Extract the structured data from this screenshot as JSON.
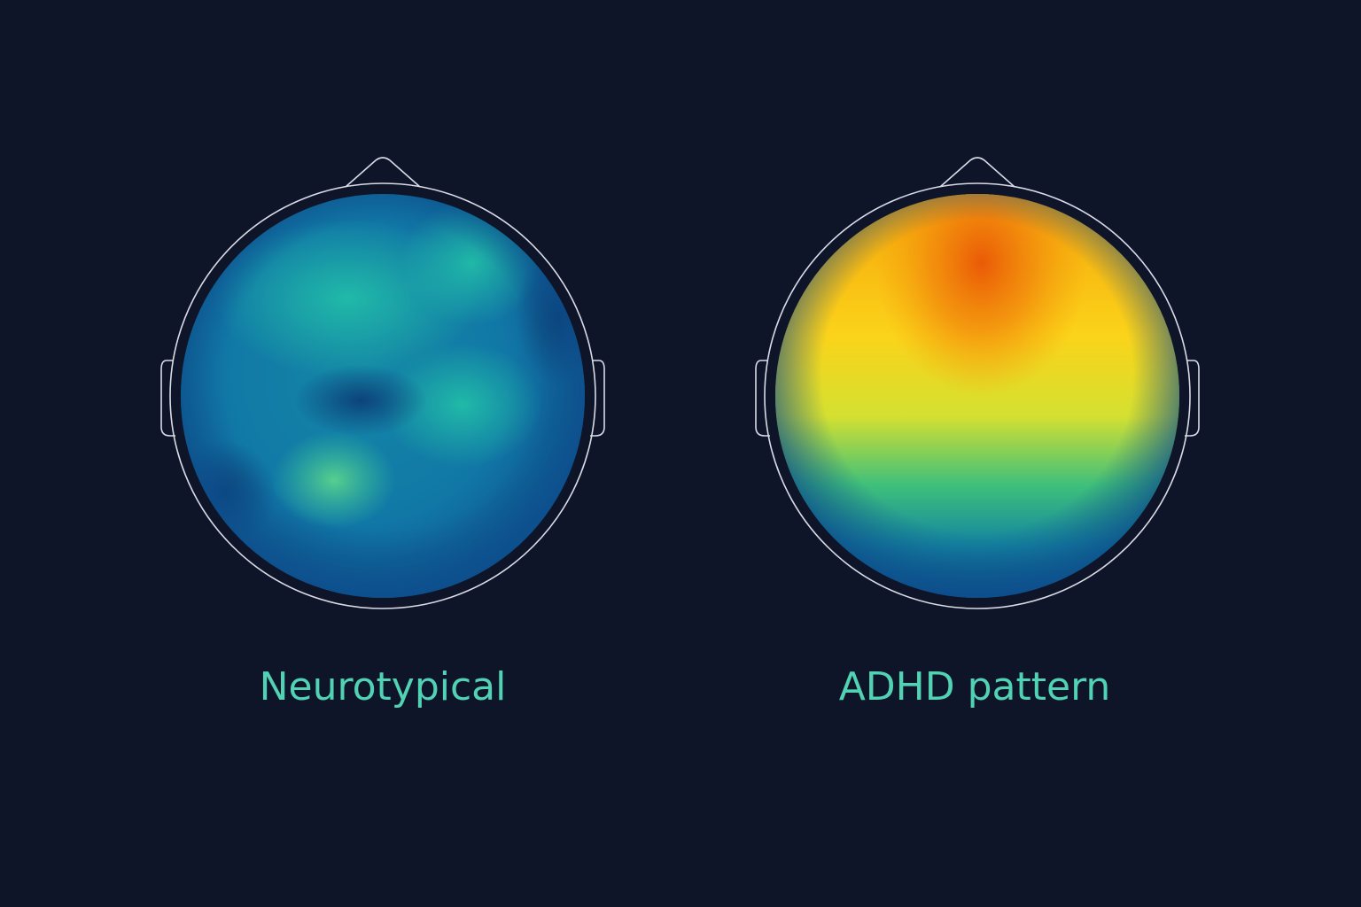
{
  "panels": [
    {
      "label": "Neurotypical"
    },
    {
      "label": "ADHD pattern"
    }
  ]
}
